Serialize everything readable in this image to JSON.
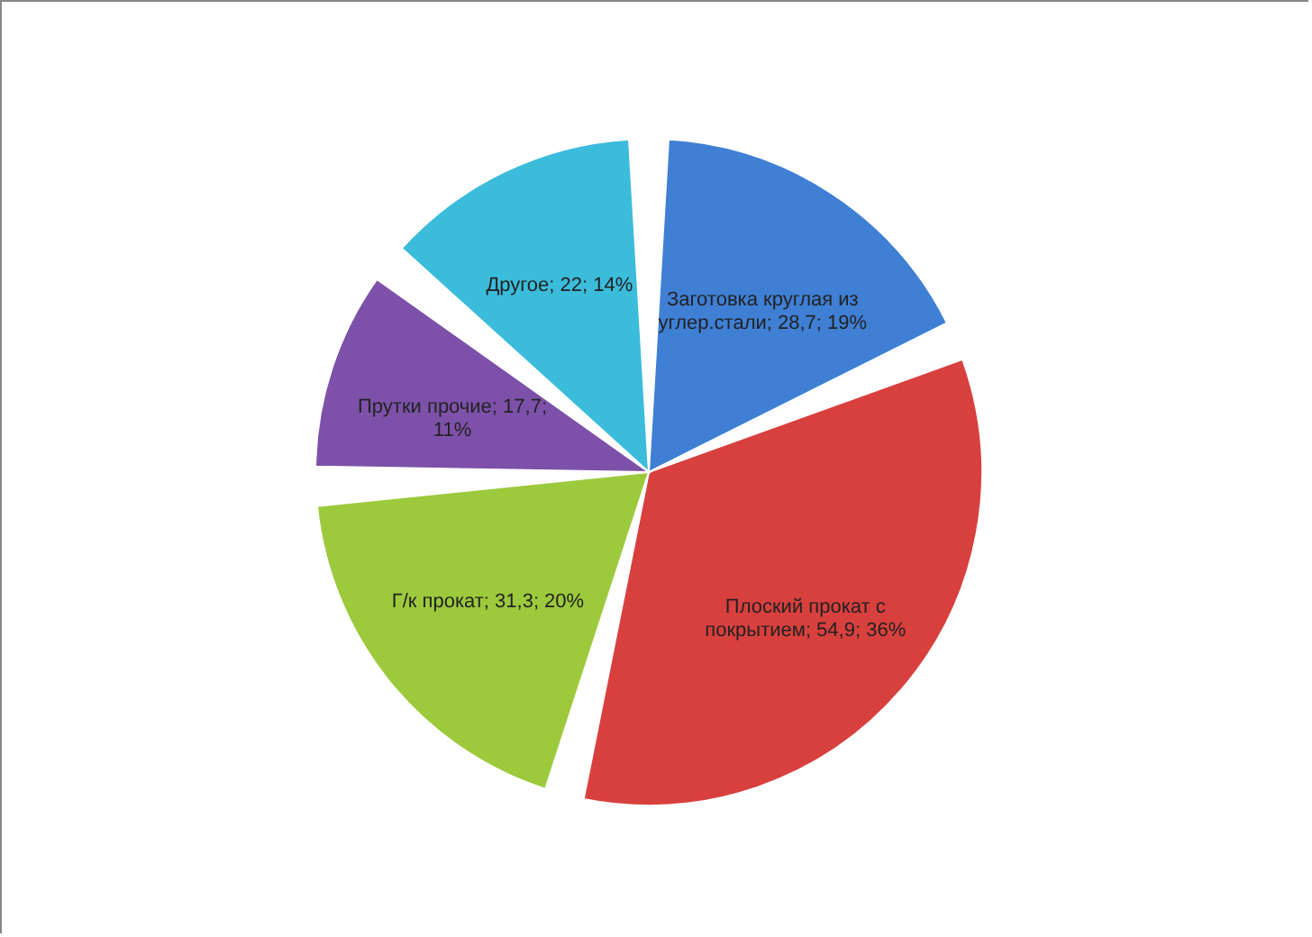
{
  "chart_data": {
    "type": "pie",
    "categories": [
      "Заготовка круглая из углер.стали",
      "Плоский прокат с покрытием",
      "Г/к прокат",
      "Прутки прочие",
      "Другое"
    ],
    "values": [
      28.7,
      54.9,
      31.3,
      17.7,
      22
    ],
    "value_labels": [
      "28,7; 19%",
      "54,9; 36%",
      "31,3; 20%",
      "17,7; 11%",
      "22; 14%"
    ],
    "colors": [
      "#3f7fd4",
      "#d8403e",
      "#9cca3c",
      "#7d51a9",
      "#3cbcdb"
    ]
  }
}
